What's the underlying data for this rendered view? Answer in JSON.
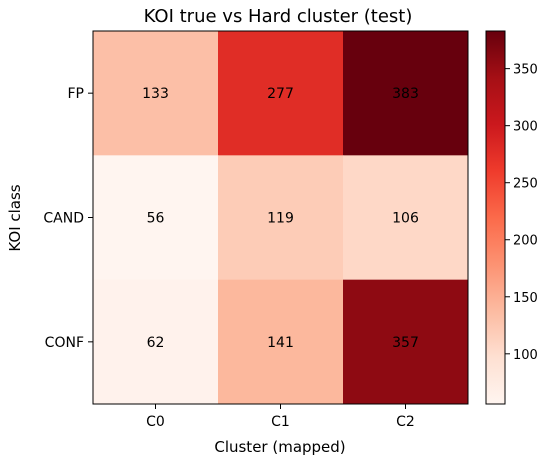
{
  "chart_data": {
    "type": "heatmap",
    "title": "KOI true vs Hard cluster (test)",
    "xlabel": "Cluster (mapped)",
    "ylabel": "KOI class",
    "x_categories": [
      "C0",
      "C1",
      "C2"
    ],
    "y_categories": [
      "FP",
      "CAND",
      "CONF"
    ],
    "values": [
      [
        133,
        277,
        383
      ],
      [
        56,
        119,
        106
      ],
      [
        62,
        141,
        357
      ]
    ],
    "colormap": "Reds",
    "color_range": [
      56,
      383
    ],
    "colorbar_ticks": [
      100,
      150,
      200,
      250,
      300,
      350
    ],
    "grid": false
  }
}
